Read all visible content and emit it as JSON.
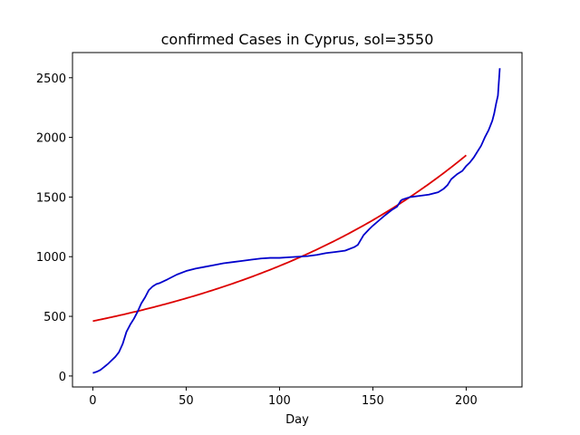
{
  "chart_data": {
    "type": "line",
    "title": "confirmed Cases in Cyprus, sol=3550",
    "xlabel": "Day",
    "ylabel": "",
    "xlim": [
      -10.9,
      229.9
    ],
    "ylim": [
      -92,
      2711
    ],
    "xticks": [
      0,
      50,
      100,
      150,
      200
    ],
    "yticks": [
      0,
      500,
      1000,
      1500,
      2000,
      2500
    ],
    "grid": false,
    "series": [
      {
        "color": "#0000cc",
        "x": [
          0,
          2,
          4,
          6,
          8,
          10,
          12,
          14,
          16,
          18,
          20,
          22,
          24,
          26,
          28,
          30,
          32,
          34,
          36,
          40,
          45,
          50,
          55,
          60,
          65,
          70,
          75,
          80,
          85,
          90,
          95,
          100,
          105,
          110,
          115,
          120,
          125,
          130,
          135,
          140,
          142,
          145,
          148,
          150,
          153,
          156,
          160,
          163,
          165,
          166,
          168,
          170,
          175,
          180,
          185,
          188,
          190,
          192,
          195,
          198,
          200,
          202,
          204,
          206,
          208,
          210,
          212,
          214,
          215,
          216,
          217,
          218
        ],
        "y": [
          25,
          35,
          50,
          75,
          100,
          130,
          160,
          200,
          270,
          370,
          430,
          480,
          540,
          610,
          660,
          720,
          750,
          770,
          780,
          810,
          850,
          880,
          900,
          915,
          930,
          945,
          955,
          965,
          975,
          985,
          990,
          990,
          995,
          1000,
          1005,
          1015,
          1030,
          1040,
          1050,
          1080,
          1100,
          1180,
          1230,
          1260,
          1300,
          1340,
          1390,
          1420,
          1470,
          1480,
          1490,
          1500,
          1510,
          1520,
          1540,
          1570,
          1600,
          1650,
          1690,
          1720,
          1760,
          1790,
          1830,
          1880,
          1930,
          2000,
          2060,
          2140,
          2200,
          2280,
          2350,
          2580
        ]
      },
      {
        "color": "#dd0000",
        "fit": {
          "a": 460,
          "b": 1850,
          "x_end": 200
        }
      }
    ]
  }
}
